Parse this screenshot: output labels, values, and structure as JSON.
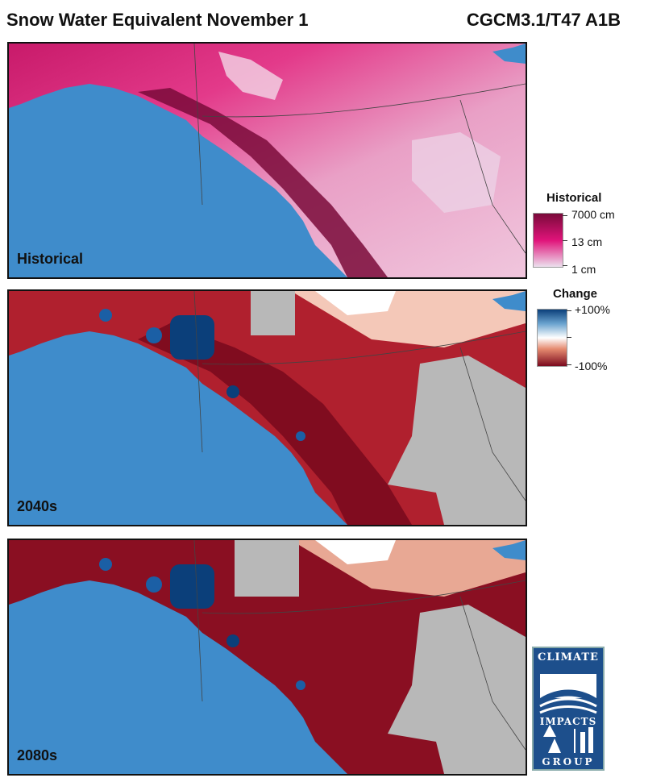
{
  "header": {
    "title": "Snow Water Equivalent November 1",
    "model": "CGCM3.1/T47 A1B"
  },
  "panels": [
    {
      "label": "Historical",
      "type": "historical"
    },
    {
      "label": "2040s",
      "type": "change"
    },
    {
      "label": "2080s",
      "type": "change"
    }
  ],
  "legend_historical": {
    "title": "Historical",
    "max_label": "7000 cm",
    "mid_label": "13 cm",
    "min_label": "1 cm",
    "scale": "log",
    "colors": [
      "#7a0a3a",
      "#e0137a",
      "#ece0ee"
    ]
  },
  "legend_change": {
    "title": "Change",
    "max_label": "+100%",
    "min_label": "-100%",
    "colors": [
      "#0b3f7a",
      "#ffffff",
      "#7b0a1e"
    ]
  },
  "colors": {
    "ocean": "#3f8ccb",
    "no_snow": "#b8b8b8"
  },
  "logo": {
    "top": "CLIMATE",
    "middle": "IMPACTS",
    "bottom": "GROUP"
  }
}
